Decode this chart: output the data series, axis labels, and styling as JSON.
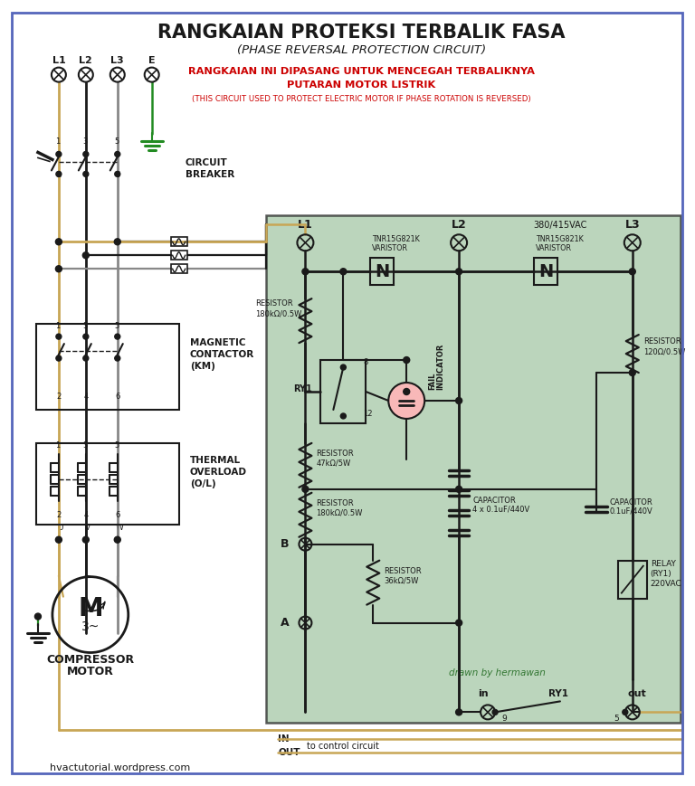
{
  "title": "RANGKAIAN PROTEKSI TERBALIK FASA",
  "subtitle": "(PHASE REVERSAL PROTECTION CIRCUIT)",
  "red_text1": "RANGKAIAN INI DIPASANG UNTUK MENCEGAH TERBALIKNYA",
  "red_text2": "PUTARAN MOTOR LISTRIK",
  "red_text3": "(THIS CIRCUIT USED TO PROTECT ELECTRIC MOTOR IF PHASE ROTATION IS REVERSED)",
  "website": "hvactutorial.wordpress.com",
  "bg_color": "#ffffff",
  "green_box_color": "#9ec4a0",
  "wire_tan": "#c8a655",
  "wire_black": "#1a1a1a",
  "wire_gray": "#888888",
  "wire_green": "#228b22",
  "border_color": "#5566bb",
  "red_color": "#cc0000",
  "drawn_color": "#337733"
}
